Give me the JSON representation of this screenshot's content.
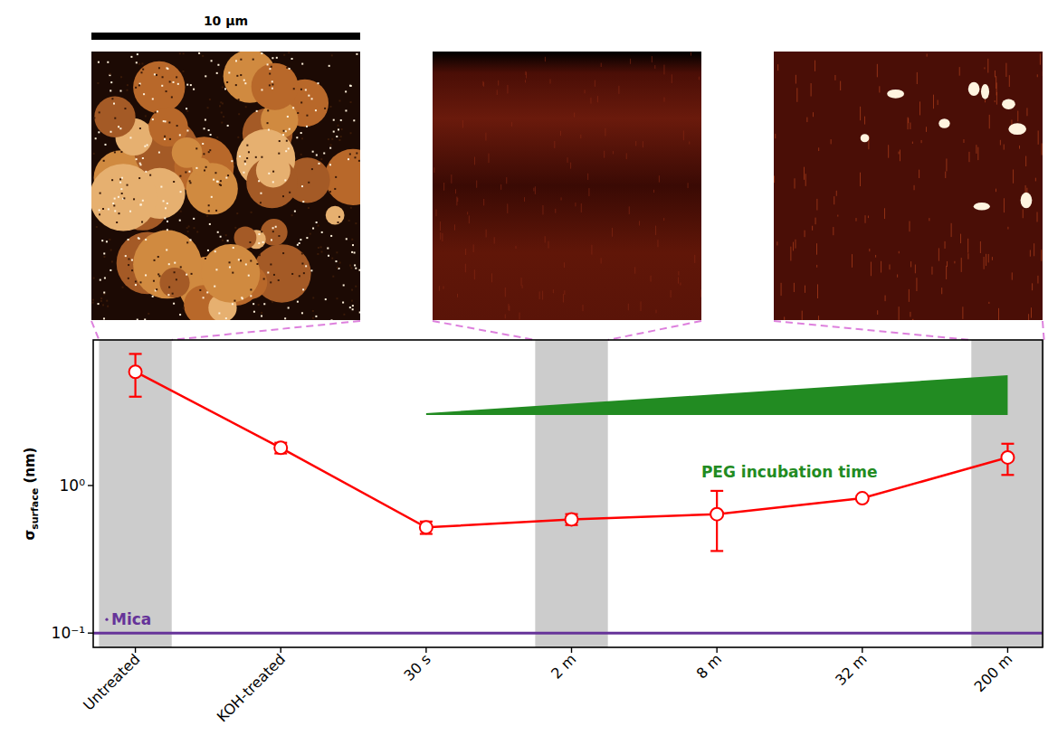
{
  "chart_data": {
    "type": "line",
    "categories": [
      "Untreated",
      "KOH-treated",
      "30 s",
      "2 m",
      "8 m",
      "32 m",
      "200 m"
    ],
    "values": [
      5.9,
      1.8,
      0.52,
      0.59,
      0.64,
      0.82,
      1.55
    ],
    "errors": [
      1.9,
      0.15,
      0.05,
      0.05,
      0.28,
      0.03,
      0.37
    ],
    "color": "#ff0000",
    "marker": "circle",
    "log": "y",
    "ylim": [
      0.08,
      9.7
    ],
    "yticks": [
      {
        "value": 0.1,
        "label": "10⁻¹"
      },
      {
        "value": 1,
        "label": "10⁰"
      }
    ],
    "ylabel": {
      "symbol": "σ",
      "subscript": "surface",
      "unit": "(nm)"
    },
    "highlighted_categories": [
      "Untreated",
      "2 m",
      "200 m"
    ],
    "reference_line": {
      "label": "Mica",
      "value": 0.1,
      "color": "#663399"
    },
    "annotation": {
      "text": "PEG incubation time",
      "color": "#228b22",
      "from": "30 s",
      "to": "200 m"
    },
    "scale_bar": {
      "label": "10 µm"
    }
  }
}
